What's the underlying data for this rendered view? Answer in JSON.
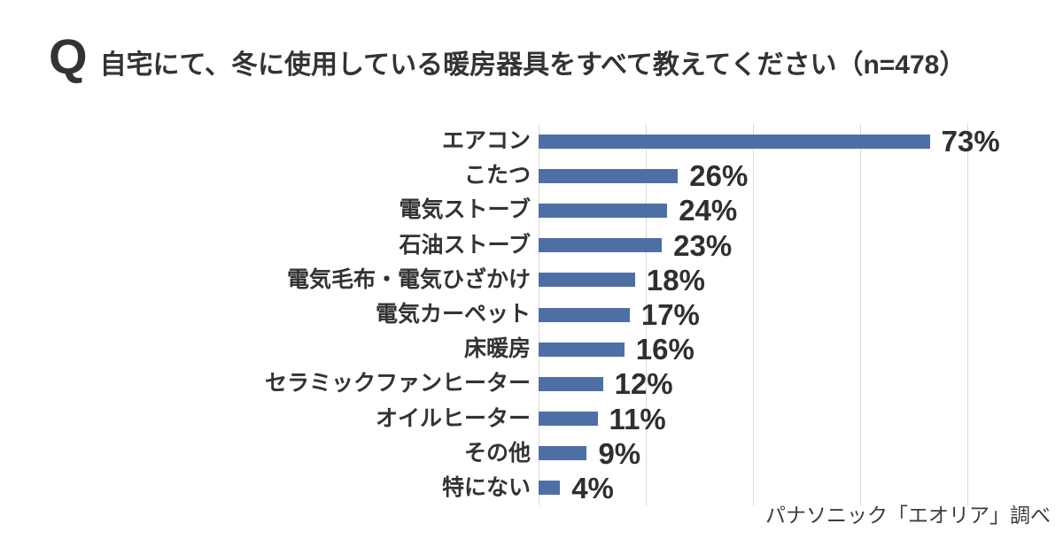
{
  "title": {
    "q_mark": "Q",
    "text": "自宅にて、冬に使用している暖房器具をすべて教えてください（n=478）"
  },
  "footer": {
    "source": "パナソニック「エオリア」調べ"
  },
  "chart_data": {
    "type": "bar",
    "orientation": "horizontal",
    "title": "自宅にて、冬に使用している暖房器具をすべて教えてください（n=478）",
    "sample_size": "n=478",
    "categories": [
      "エアコン",
      "こたつ",
      "電気ストーブ",
      "石油ストーブ",
      "電気毛布・電気ひざかけ",
      "電気カーペット",
      "床暖房",
      "セラミックファンヒーター",
      "オイルヒーター",
      "その他",
      "特にない"
    ],
    "values": [
      73,
      26,
      24,
      23,
      18,
      17,
      16,
      12,
      11,
      9,
      4
    ],
    "value_labels": [
      "73%",
      "26%",
      "24%",
      "23%",
      "18%",
      "17%",
      "16%",
      "12%",
      "11%",
      "9%",
      "4%"
    ],
    "unit": "%",
    "xlim": [
      0,
      80
    ],
    "gridline_interval": 20,
    "grid": true,
    "legend": "none",
    "bar_color": "#4e6fa5",
    "gridline_color": "#d9d9d9",
    "text_color": "#333333",
    "source": "パナソニック「エオリア」調べ"
  }
}
